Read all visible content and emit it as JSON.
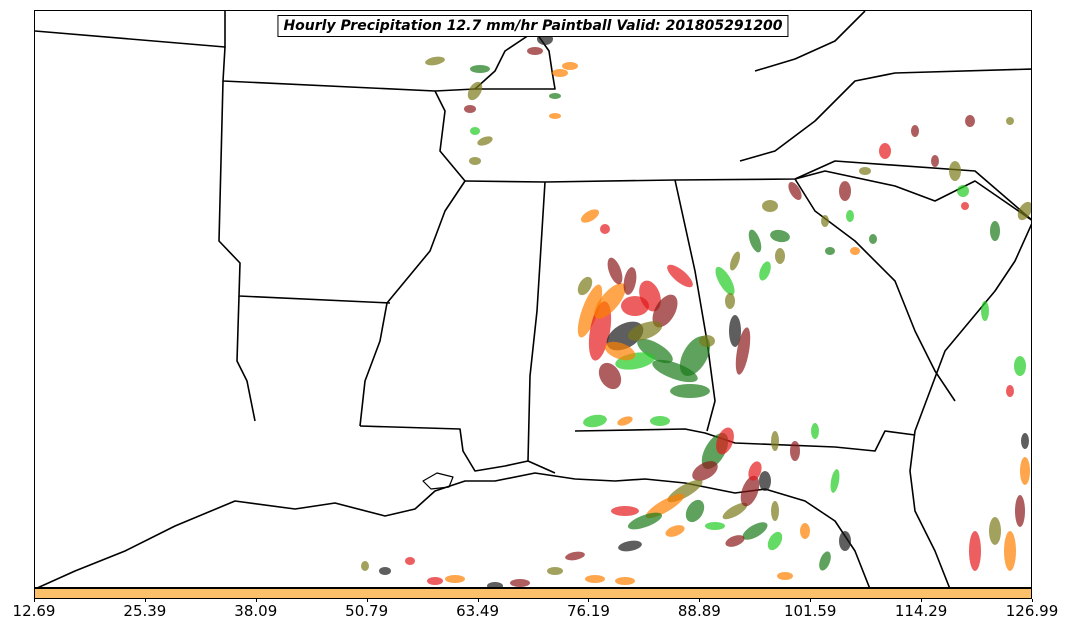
{
  "title": "Hourly Precipitation 12.7 mm/hr Paintball Valid: 201805291200",
  "colorbar": {
    "color": "#fdc06a",
    "ticks": [
      "12.69",
      "25.39",
      "38.09",
      "50.79",
      "63.49",
      "76.19",
      "88.89",
      "101.59",
      "114.29",
      "126.99"
    ]
  },
  "member_colors": [
    "#e41a1c",
    "#1a1a1a",
    "#1a7a1a",
    "#ff7f00",
    "#8b1a1a",
    "#7a7a1a",
    "#22cc22"
  ]
}
